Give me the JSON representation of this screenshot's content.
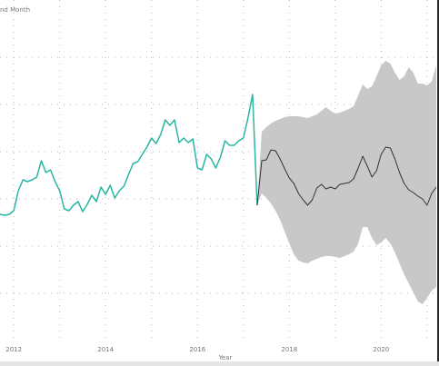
{
  "chart_data": {
    "type": "forecast-line",
    "title": "nd Month",
    "x_label": "Year",
    "xlim": [
      2011.7,
      2021.26
    ],
    "xticks": [
      2012,
      2014,
      2016,
      2018,
      2020
    ],
    "xgrid": [
      2012,
      2013,
      2014,
      2015,
      2016,
      2017,
      2018,
      2019,
      2020,
      2021
    ],
    "ylim": [
      0,
      365
    ],
    "ygrid": [
      52,
      104,
      156,
      208,
      260,
      312
    ],
    "grid": true,
    "band_color": "#c8c8c8",
    "series": [
      {
        "color": "#2bb5a3",
        "x": [
          2011.7,
          2011.8,
          2011.9,
          2012,
          2012.1,
          2012.2,
          2012.3,
          2012.4,
          2012.5,
          2012.6,
          2012.7,
          2012.8,
          2012.9,
          2013,
          2013.1,
          2013.2,
          2013.3,
          2013.4,
          2013.5,
          2013.6,
          2013.7,
          2013.8,
          2013.9,
          2014,
          2014.1,
          2014.2,
          2014.3,
          2014.4,
          2014.5,
          2014.6,
          2014.7,
          2014.8,
          2014.9,
          2015,
          2015.1,
          2015.2,
          2015.3,
          2015.4,
          2015.5,
          2015.6,
          2015.7,
          2015.8,
          2015.9,
          2016,
          2016.1,
          2016.2,
          2016.3,
          2016.4,
          2016.5,
          2016.6,
          2016.7,
          2016.8,
          2016.9,
          2017,
          2017.1,
          2017.2,
          2017.3
        ],
        "values": [
          139,
          138,
          139,
          143,
          165,
          177,
          175,
          177,
          180,
          198,
          185,
          188,
          175,
          165,
          145,
          143,
          149,
          153,
          142,
          150,
          160,
          153,
          169,
          161,
          171,
          157,
          165,
          170,
          183,
          195,
          197,
          205,
          213,
          223,
          217,
          227,
          243,
          237,
          243,
          218,
          223,
          218,
          222,
          190,
          188,
          205,
          200,
          190,
          202,
          220,
          215,
          215,
          220,
          223,
          245,
          271,
          149
        ]
      },
      {
        "color": "#333333",
        "x": [
          2017.3,
          2017.4,
          2017.5,
          2017.6,
          2017.7,
          2017.8,
          2017.9,
          2018,
          2018.1,
          2018.2,
          2018.3,
          2018.4,
          2018.5,
          2018.6,
          2018.7,
          2018.8,
          2018.9,
          2019,
          2019.1,
          2019.2,
          2019.3,
          2019.4,
          2019.5,
          2019.6,
          2019.7,
          2019.8,
          2019.9,
          2020,
          2020.1,
          2020.2,
          2020.3,
          2020.4,
          2020.5,
          2020.6,
          2020.7,
          2020.8,
          2020.9,
          2021,
          2021.1,
          2021.2
        ],
        "values": [
          149,
          198,
          199,
          210,
          209,
          200,
          189,
          179,
          173,
          162,
          155,
          149,
          155,
          168,
          172,
          167,
          169,
          167,
          172,
          173,
          174,
          178,
          190,
          203,
          192,
          180,
          187,
          205,
          213,
          212,
          200,
          185,
          173,
          166,
          163,
          159,
          156,
          149,
          162,
          169
        ],
        "upper": [
          149,
          230,
          235,
          239,
          242,
          244,
          246,
          247,
          247,
          247,
          246,
          245,
          247,
          249,
          253,
          257,
          253,
          250,
          251,
          253,
          255,
          258,
          270,
          282,
          277,
          280,
          291,
          303,
          308,
          305,
          295,
          287,
          291,
          301,
          295,
          283,
          283,
          281,
          285,
          303
        ],
        "lower": [
          149,
          162,
          157,
          151,
          143,
          133,
          120,
          107,
          95,
          88,
          86,
          85,
          88,
          90,
          92,
          93,
          93,
          92,
          91,
          93,
          95,
          98,
          107,
          125,
          125,
          113,
          105,
          108,
          113,
          107,
          97,
          85,
          73,
          63,
          53,
          43,
          40,
          47,
          55,
          59
        ]
      }
    ]
  }
}
